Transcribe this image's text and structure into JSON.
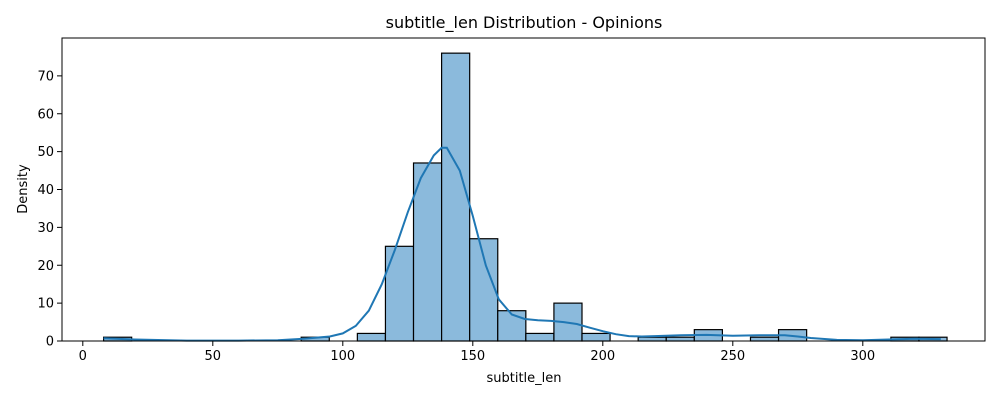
{
  "chart_data": {
    "type": "bar",
    "title": "subtitle_len Distribution - Opinions",
    "xlabel": "subtitle_len",
    "ylabel": "Density",
    "xlim": [
      -8,
      347
    ],
    "ylim": [
      0,
      80
    ],
    "xticks": [
      0,
      50,
      100,
      150,
      200,
      250,
      300
    ],
    "yticks": [
      0,
      10,
      20,
      30,
      40,
      50,
      60,
      70
    ],
    "grid": false,
    "bar_color": "#8bbadc",
    "bar_edge_color": "#000000",
    "kde_color": "#1f77b4",
    "bins": [
      {
        "x0": 8.0,
        "x1": 18.8,
        "value": 1
      },
      {
        "x0": 84.0,
        "x1": 94.8,
        "value": 1
      },
      {
        "x0": 105.6,
        "x1": 116.4,
        "value": 2
      },
      {
        "x0": 116.4,
        "x1": 127.2,
        "value": 25
      },
      {
        "x0": 127.2,
        "x1": 138.0,
        "value": 47
      },
      {
        "x0": 138.0,
        "x1": 148.8,
        "value": 76
      },
      {
        "x0": 148.8,
        "x1": 159.6,
        "value": 27
      },
      {
        "x0": 159.6,
        "x1": 170.4,
        "value": 8
      },
      {
        "x0": 170.4,
        "x1": 181.2,
        "value": 2
      },
      {
        "x0": 181.2,
        "x1": 192.0,
        "value": 10
      },
      {
        "x0": 192.0,
        "x1": 202.8,
        "value": 2
      },
      {
        "x0": 213.6,
        "x1": 224.4,
        "value": 1
      },
      {
        "x0": 224.4,
        "x1": 235.2,
        "value": 1
      },
      {
        "x0": 235.2,
        "x1": 246.0,
        "value": 3
      },
      {
        "x0": 256.8,
        "x1": 267.6,
        "value": 1
      },
      {
        "x0": 267.6,
        "x1": 278.4,
        "value": 3
      },
      {
        "x0": 310.8,
        "x1": 321.6,
        "value": 1
      },
      {
        "x0": 321.6,
        "x1": 332.4,
        "value": 1
      }
    ],
    "kde": [
      [
        8,
        0.7
      ],
      [
        20,
        0.4
      ],
      [
        40,
        0.1
      ],
      [
        60,
        0.1
      ],
      [
        75,
        0.2
      ],
      [
        85,
        0.6
      ],
      [
        95,
        1.2
      ],
      [
        100,
        2
      ],
      [
        105,
        4
      ],
      [
        110,
        8
      ],
      [
        115,
        15
      ],
      [
        120,
        24
      ],
      [
        125,
        34
      ],
      [
        130,
        43
      ],
      [
        135,
        49
      ],
      [
        138,
        51
      ],
      [
        140,
        51
      ],
      [
        145,
        45
      ],
      [
        150,
        33
      ],
      [
        155,
        20
      ],
      [
        160,
        11
      ],
      [
        165,
        7
      ],
      [
        170,
        5.8
      ],
      [
        175,
        5.5
      ],
      [
        180,
        5.3
      ],
      [
        185,
        5
      ],
      [
        190,
        4.5
      ],
      [
        195,
        3.5
      ],
      [
        200,
        2.6
      ],
      [
        205,
        1.8
      ],
      [
        210,
        1.3
      ],
      [
        215,
        1.2
      ],
      [
        220,
        1.3
      ],
      [
        230,
        1.5
      ],
      [
        240,
        1.6
      ],
      [
        250,
        1.4
      ],
      [
        260,
        1.5
      ],
      [
        270,
        1.5
      ],
      [
        275,
        1.2
      ],
      [
        280,
        0.8
      ],
      [
        290,
        0.3
      ],
      [
        300,
        0.2
      ],
      [
        310,
        0.4
      ],
      [
        320,
        0.6
      ],
      [
        330,
        0.5
      ]
    ]
  }
}
